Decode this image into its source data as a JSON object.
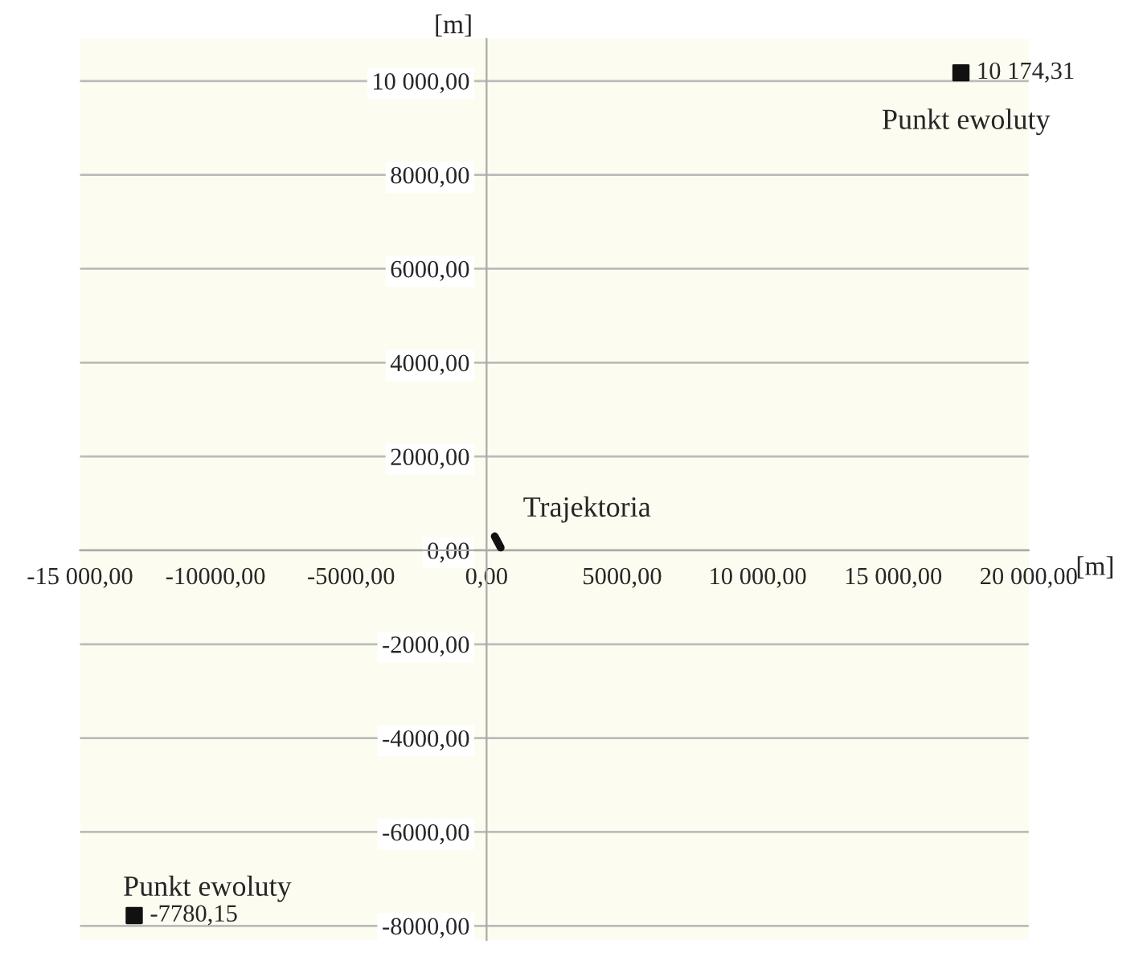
{
  "chart_data": {
    "type": "scatter",
    "xlabel": "[m]",
    "ylabel": "[m]",
    "xlim": [
      -15000,
      20000
    ],
    "ylim": [
      -8300,
      10900
    ],
    "xticks": [
      {
        "value": -15000,
        "label": "-15 000,00"
      },
      {
        "value": -10000,
        "label": "-10000,00"
      },
      {
        "value": -5000,
        "label": "-5000,00"
      },
      {
        "value": 0,
        "label": "0,00"
      },
      {
        "value": 5000,
        "label": "5000,00"
      },
      {
        "value": 10000,
        "label": "10 000,00"
      },
      {
        "value": 15000,
        "label": "15 000,00"
      },
      {
        "value": 20000,
        "label": "20 000,00"
      }
    ],
    "yticks": [
      {
        "value": -8000,
        "label": "-8000,00"
      },
      {
        "value": -6000,
        "label": "-6000,00"
      },
      {
        "value": -4000,
        "label": "-4000,00"
      },
      {
        "value": -2000,
        "label": "-2000,00"
      },
      {
        "value": 0,
        "label": "0,00"
      },
      {
        "value": 2000,
        "label": "2000,00"
      },
      {
        "value": 4000,
        "label": "4000,00"
      },
      {
        "value": 6000,
        "label": "6000,00"
      },
      {
        "value": 8000,
        "label": "8000,00"
      },
      {
        "value": 10000,
        "label": "10 000,00"
      }
    ],
    "grid": "y",
    "legend": false,
    "series": [
      {
        "type": "line",
        "color": "#111111",
        "x": [
          300,
          520
        ],
        "values": [
          300,
          60
        ]
      },
      {
        "type": "scatter",
        "marker": "square",
        "color": "#111111",
        "x": [
          17500,
          -13000
        ],
        "values": [
          10174.31,
          -7780.15
        ],
        "value_labels": [
          "10 174,31",
          "-7780,15"
        ]
      }
    ],
    "annotations": [
      {
        "text": "Punkt ewoluty",
        "x": 17500,
        "y": 10174.31
      },
      {
        "text": "Punkt ewoluty",
        "x": -13000,
        "y": -7780.15
      },
      {
        "text": "Trajektoria",
        "x": 520,
        "y": 300
      }
    ]
  }
}
